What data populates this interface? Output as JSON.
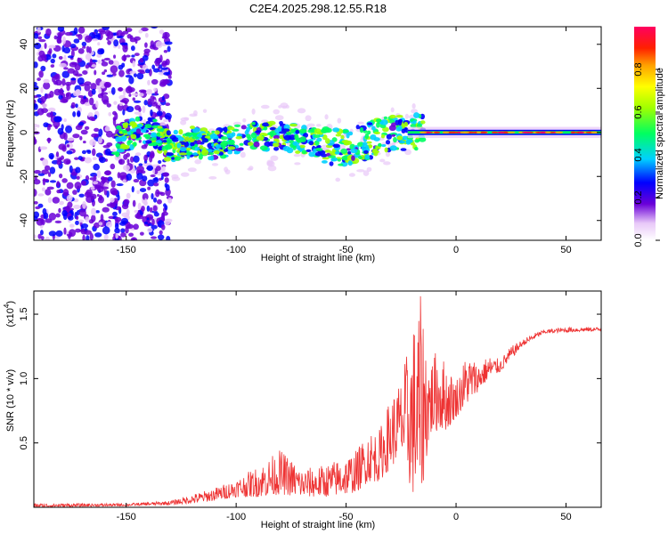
{
  "title": "C2E4.2025.298.12.55.R18",
  "chart_data": [
    {
      "type": "heatmap",
      "xlabel": "Height of straight line (km)",
      "ylabel": "Frequency (Hz)",
      "xlim": [
        -192,
        66
      ],
      "ylim": [
        -49,
        48
      ],
      "xticks": [
        -150,
        -100,
        -50,
        0,
        50
      ],
      "yticks": [
        -40,
        -20,
        0,
        20,
        40
      ],
      "colorbar": {
        "label": "Normalized spectral amplitude",
        "ticks": [
          "0.0",
          "0.2",
          "0.4",
          "0.6",
          "0.8"
        ],
        "range": [
          0,
          1
        ]
      },
      "ridge": {
        "description_points_x": [
          -150,
          -140,
          -130,
          -120,
          -110,
          -100,
          -90,
          -80,
          -70,
          -60,
          -50,
          -40,
          -30,
          -20,
          -10,
          0,
          20,
          40,
          66
        ],
        "frequency_y": [
          -2,
          2,
          -7,
          -4,
          -6,
          -3,
          -2,
          -1,
          -3,
          -6,
          -7,
          -4,
          0,
          0,
          -1,
          0,
          0,
          0,
          0
        ]
      }
    },
    {
      "type": "line",
      "xlabel": "Height of straight line (km)",
      "ylabel": "SNR (10 * v/v)",
      "multiplier": "(x10",
      "multiplier_exp": "4",
      "multiplier_close": ")",
      "xlim": [
        -192,
        66
      ],
      "ylim": [
        0,
        1.68
      ],
      "xticks": [
        -150,
        -100,
        -50,
        0,
        50
      ],
      "yticks": [
        "0.5",
        "1.0",
        "1.5"
      ],
      "envelope": {
        "x": [
          -192,
          -150,
          -130,
          -120,
          -110,
          -100,
          -90,
          -80,
          -70,
          -60,
          -50,
          -45,
          -40,
          -35,
          -30,
          -25,
          -20,
          -16,
          -12,
          -8,
          -4,
          0,
          5,
          10,
          15,
          20,
          25,
          30,
          35,
          40,
          50,
          66
        ],
        "upper": [
          0.03,
          0.03,
          0.05,
          0.1,
          0.15,
          0.22,
          0.32,
          0.45,
          0.3,
          0.33,
          0.4,
          0.45,
          0.6,
          0.6,
          0.85,
          1.0,
          1.4,
          1.65,
          1.15,
          1.25,
          1.1,
          1.0,
          1.2,
          1.12,
          1.18,
          1.15,
          1.25,
          1.3,
          1.35,
          1.38,
          1.4,
          1.4
        ],
        "lower": [
          0.0,
          0.01,
          0.02,
          0.03,
          0.05,
          0.08,
          0.08,
          0.1,
          0.08,
          0.08,
          0.1,
          0.12,
          0.2,
          0.2,
          0.3,
          0.4,
          0.1,
          0.05,
          0.55,
          0.6,
          0.6,
          0.7,
          0.8,
          0.9,
          1.0,
          1.05,
          1.15,
          1.25,
          1.3,
          1.35,
          1.36,
          1.37
        ]
      },
      "series_color": "#ee3333"
    }
  ]
}
